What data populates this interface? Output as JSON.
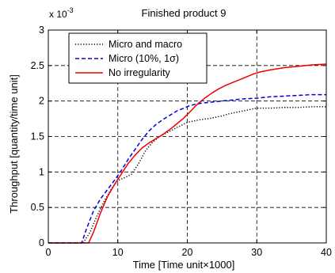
{
  "chart_data": {
    "type": "line",
    "title": "Finished product 9",
    "xlabel": "Time [Time unit×1000]",
    "ylabel": "Throughput [quantity/time unit]",
    "yexponent": "x 10",
    "yexponent_power": "-3",
    "xlim": [
      0,
      40
    ],
    "ylim": [
      0,
      3
    ],
    "xticks": [
      0,
      10,
      20,
      30,
      40
    ],
    "yticks": [
      0,
      0.5,
      1,
      1.5,
      2,
      2.5,
      3
    ],
    "xtick_labels": [
      "0",
      "10",
      "20",
      "30",
      "40"
    ],
    "ytick_labels": [
      "0",
      "0.5",
      "1",
      "1.5",
      "2",
      "2.5",
      "3"
    ],
    "grid": true,
    "legend_position": "top-left",
    "series": [
      {
        "name": "Micro and macro",
        "color": "#000000",
        "dash": "dotted",
        "x": [
          0,
          5,
          6,
          7,
          8,
          9,
          10,
          11,
          12,
          13,
          14,
          15,
          16,
          17,
          18,
          19,
          20,
          21,
          22,
          23,
          24,
          25,
          26,
          27,
          28,
          29,
          30,
          32,
          34,
          36,
          38,
          40
        ],
        "y": [
          0,
          0,
          0.15,
          0.38,
          0.58,
          0.75,
          0.88,
          0.92,
          0.97,
          1.12,
          1.3,
          1.42,
          1.5,
          1.55,
          1.6,
          1.65,
          1.7,
          1.72,
          1.74,
          1.75,
          1.77,
          1.79,
          1.82,
          1.84,
          1.86,
          1.88,
          1.9,
          1.9,
          1.91,
          1.91,
          1.92,
          1.92
        ]
      },
      {
        "name": "Micro (10%, 1σ)",
        "color": "#0000dd",
        "dash": "dashed",
        "x": [
          0,
          4.8,
          5.5,
          6.5,
          7.5,
          8.5,
          9.5,
          10.5,
          11.5,
          12.5,
          13.5,
          14.5,
          15.5,
          16.5,
          17.5,
          18.5,
          19.5,
          20.5,
          22,
          24,
          26,
          28,
          30,
          32,
          34,
          36,
          38,
          40
        ],
        "y": [
          0,
          0,
          0.2,
          0.45,
          0.62,
          0.75,
          0.88,
          1.02,
          1.18,
          1.32,
          1.46,
          1.58,
          1.67,
          1.74,
          1.8,
          1.86,
          1.9,
          1.94,
          1.97,
          1.99,
          2.01,
          2.03,
          2.04,
          2.06,
          2.07,
          2.08,
          2.09,
          2.09
        ]
      },
      {
        "name": "No irregularity",
        "color": "#ee0000",
        "dash": "solid",
        "x": [
          0,
          5.8,
          6.5,
          7.5,
          8.5,
          9.5,
          10.5,
          11.5,
          12.5,
          13.5,
          14.5,
          15.5,
          16.5,
          17.5,
          18.5,
          19.5,
          20.5,
          21.5,
          22.5,
          23.5,
          24.5,
          25.5,
          26.5,
          27.5,
          28.5,
          29.5,
          30.5,
          32,
          34,
          36,
          38,
          40
        ],
        "y": [
          0,
          0,
          0.15,
          0.42,
          0.65,
          0.82,
          0.97,
          1.12,
          1.24,
          1.34,
          1.41,
          1.47,
          1.53,
          1.6,
          1.68,
          1.76,
          1.86,
          1.96,
          2.04,
          2.11,
          2.17,
          2.22,
          2.26,
          2.3,
          2.34,
          2.38,
          2.41,
          2.44,
          2.47,
          2.49,
          2.51,
          2.52
        ]
      }
    ]
  }
}
